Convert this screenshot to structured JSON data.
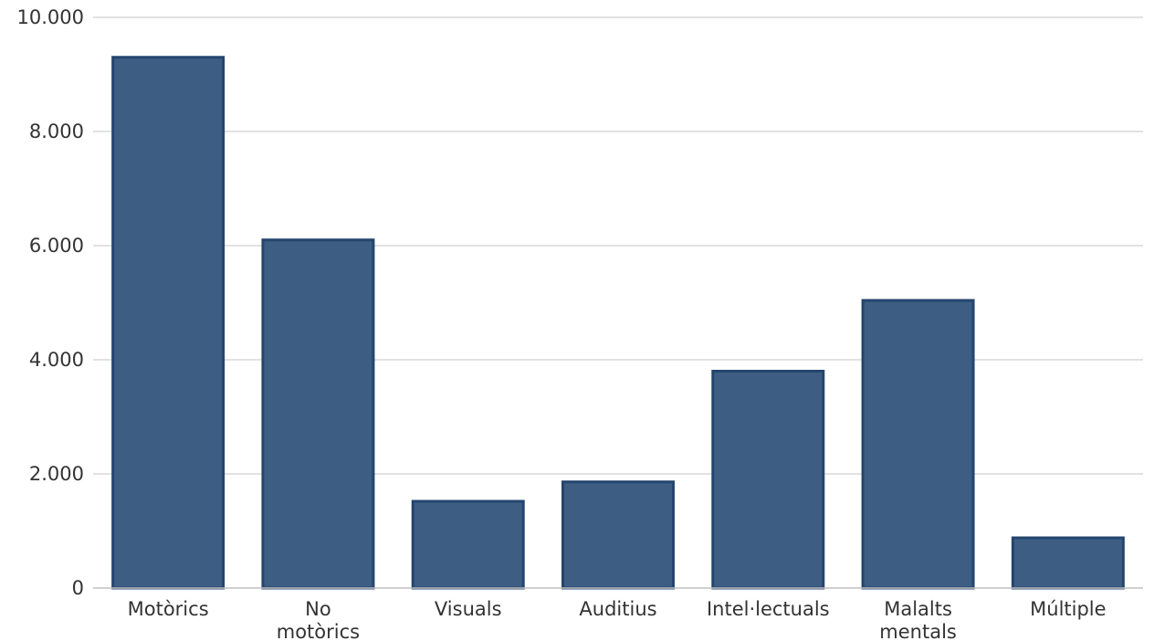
{
  "chart_data": {
    "type": "bar",
    "title": "",
    "xlabel": "",
    "ylabel": "",
    "categories": [
      "Motòrics",
      "No motòrics",
      "Visuals",
      "Auditius",
      "Intel·lectuals",
      "Malalts mentals",
      "Múltiple"
    ],
    "category_lines": [
      [
        "Motòrics"
      ],
      [
        "No",
        "motòrics"
      ],
      [
        "Visuals"
      ],
      [
        "Auditius"
      ],
      [
        "Intel·lectuals"
      ],
      [
        "Malalts",
        "mentals"
      ],
      [
        "Múltiple"
      ]
    ],
    "values": [
      9300,
      6100,
      1520,
      1860,
      3800,
      5040,
      880
    ],
    "ylim": [
      0,
      10000
    ],
    "yticks": [
      0,
      2000,
      4000,
      6000,
      8000,
      10000
    ],
    "ytick_labels": [
      "0",
      "2.000",
      "4.000",
      "6.000",
      "8.000",
      "10.000"
    ],
    "grid": true,
    "bar_color": "#3d5e82",
    "bar_edge_color": "#24456e",
    "grid_color": "#d9d9d9"
  }
}
